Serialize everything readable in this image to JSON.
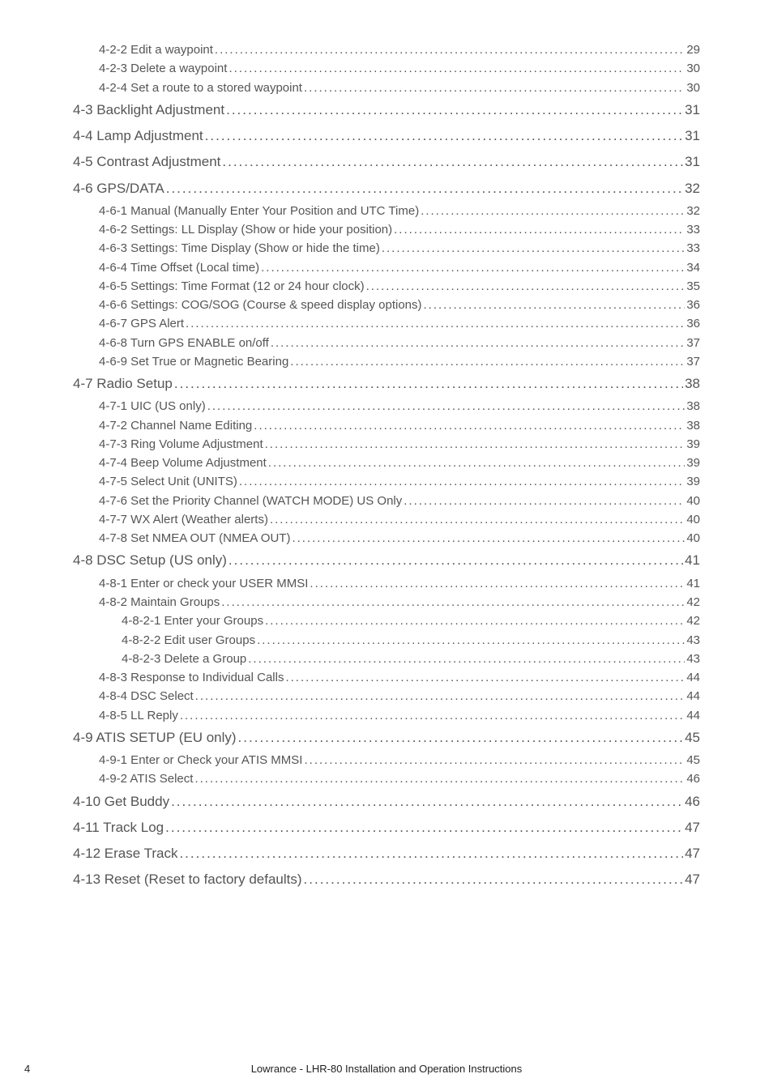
{
  "toc": [
    {
      "level": 2,
      "title": "4-2-2 Edit a waypoint",
      "page": "29"
    },
    {
      "level": 2,
      "title": "4-2-3 Delete a waypoint",
      "page": "30"
    },
    {
      "level": 2,
      "title": "4-2-4  Set a route to a stored waypoint",
      "page": "30"
    },
    {
      "level": 1,
      "title": "4-3  Backlight Adjustment",
      "page": "31"
    },
    {
      "level": 1,
      "title": "4-4  Lamp Adjustment",
      "page": "31"
    },
    {
      "level": 1,
      "title": "4-5  Contrast Adjustment",
      "page": "31"
    },
    {
      "level": 1,
      "title": "4-6 GPS/DATA",
      "page": "32"
    },
    {
      "level": 2,
      "title": "4-6-1 Manual (Manually Enter Your Position and UTC Time)",
      "page": "32"
    },
    {
      "level": 2,
      "title": "4-6-2 Settings: LL Display (Show or hide your position)",
      "page": "33"
    },
    {
      "level": 2,
      "title": "4-6-3 Settings: Time Display (Show or hide the time)",
      "page": "33"
    },
    {
      "level": 2,
      "title": "4-6-4 Time Offset (Local time)",
      "page": "34"
    },
    {
      "level": 2,
      "title": "4-6-5 Settings: Time Format (12 or 24 hour clock)",
      "page": "35"
    },
    {
      "level": 2,
      "title": "4-6-6 Settings: COG/SOG (Course & speed display options)",
      "page": "36"
    },
    {
      "level": 2,
      "title": "4-6-7 GPS Alert",
      "page": "36"
    },
    {
      "level": 2,
      "title": "4-6-8 Turn GPS ENABLE on/off",
      "page": "37"
    },
    {
      "level": 2,
      "title": "4-6-9 Set True or Magnetic Bearing",
      "page": "37"
    },
    {
      "level": 1,
      "title": "4-7 Radio Setup",
      "page": "38"
    },
    {
      "level": 2,
      "title": "4-7-1 UIC (US only)",
      "page": "38"
    },
    {
      "level": 2,
      "title": "4-7-2 Channel Name Editing",
      "page": "38"
    },
    {
      "level": 2,
      "title": "4-7-3 Ring Volume Adjustment",
      "page": "39"
    },
    {
      "level": 2,
      "title": "4-7-4 Beep Volume Adjustment",
      "page": "39"
    },
    {
      "level": 2,
      "title": "4-7-5 Select Unit (UNITS)",
      "page": "39"
    },
    {
      "level": 2,
      "title": "4-7-6 Set the Priority Channel (WATCH MODE) US Only",
      "page": "40"
    },
    {
      "level": 2,
      "title": "4-7-7 WX Alert (Weather alerts)",
      "page": "40"
    },
    {
      "level": 2,
      "title": "4-7-8 Set NMEA OUT (NMEA OUT)",
      "page": "40"
    },
    {
      "level": 1,
      "title": "4-8   DSC Setup (US only)",
      "page": "41"
    },
    {
      "level": 2,
      "title": "4-8-1 Enter or check your USER MMSI",
      "page": "41"
    },
    {
      "level": 2,
      "title": "4-8-2 Maintain Groups",
      "page": "42"
    },
    {
      "level": 3,
      "title": "4-8-2-1 Enter your Groups",
      "page": "42"
    },
    {
      "level": 3,
      "title": "4-8-2-2 Edit user Groups",
      "page": "43"
    },
    {
      "level": 3,
      "title": "4-8-2-3 Delete a Group",
      "page": "43"
    },
    {
      "level": 2,
      "title": "4-8-3 Response to Individual Calls",
      "page": "44"
    },
    {
      "level": 2,
      "title": "4-8-4 DSC Select",
      "page": "44"
    },
    {
      "level": 2,
      "title": "4-8-5  LL Reply",
      "page": "44"
    },
    {
      "level": 1,
      "title": "4-9   ATIS SETUP (EU only)",
      "page": "45"
    },
    {
      "level": 2,
      "title": "4-9-1 Enter or Check your ATIS MMSI",
      "page": "45"
    },
    {
      "level": 2,
      "title": "4-9-2 ATIS Select",
      "page": "46"
    },
    {
      "level": 1,
      "title": "4-10  Get Buddy",
      "page": "46"
    },
    {
      "level": 1,
      "title": "4-11 Track Log",
      "page": "47"
    },
    {
      "level": 1,
      "title": "4-12 Erase Track",
      "page": "47"
    },
    {
      "level": 1,
      "title": "4-13 Reset (Reset to factory defaults)",
      "page": "47"
    }
  ],
  "footer_text": "Lowrance - LHR-80 Installation and Operation Instructions",
  "page_number": "4"
}
